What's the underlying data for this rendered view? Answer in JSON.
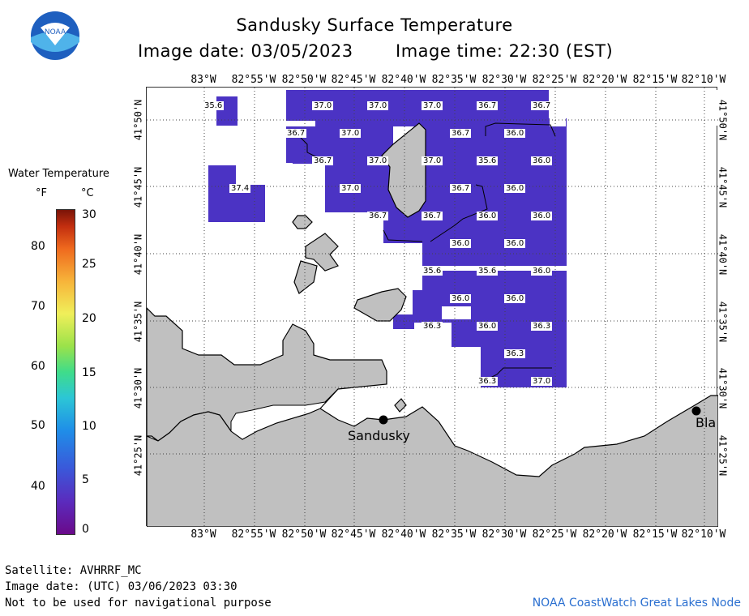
{
  "header": {
    "title": "Sandusky Surface Temperature",
    "image_date": "Image date: 03/05/2023",
    "image_time": "Image time: 22:30 (EST)",
    "logo_text": "NOAA"
  },
  "legend": {
    "title": "Water Temperature",
    "unit_f": "°F",
    "unit_c": "°C",
    "f_ticks": [
      "80",
      "70",
      "60",
      "50",
      "40"
    ],
    "c_ticks": [
      "30",
      "25",
      "20",
      "15",
      "10",
      "5",
      "0"
    ]
  },
  "axes": {
    "lon_labels": [
      "83°W",
      "82°55'W",
      "82°50'W",
      "82°45'W",
      "82°40'W",
      "82°35'W",
      "82°30'W",
      "82°25'W",
      "82°20'W",
      "82°15'W",
      "82°10'W"
    ],
    "lat_labels": [
      "41°50'N",
      "41°45'N",
      "41°40'N",
      "41°35'N",
      "41°30'N",
      "41°25'N"
    ]
  },
  "temperatures": [
    "35.6",
    "37.0",
    "37.0",
    "37.0",
    "36.7",
    "36.7",
    "36.7",
    "37.0",
    "36.7",
    "36.0",
    "36.7",
    "37.0",
    "37.0",
    "35.6",
    "36.0",
    "37.4",
    "37.0",
    "36.7",
    "36.0",
    "36.7",
    "36.7",
    "36.0",
    "36.0",
    "36.0",
    "36.0",
    "35.6",
    "35.6",
    "36.0",
    "36.0",
    "36.0",
    "36.3",
    "36.0",
    "36.3",
    "36.3",
    "36.3",
    "37.0"
  ],
  "cities": {
    "sandusky": "Sandusky",
    "bla": "Bla"
  },
  "footer": {
    "satellite": "Satellite: AVHRRF_MC",
    "utc_date": "Image date: (UTC) 03/06/2023  03:30",
    "disclaimer": "Not to be used for navigational purpose",
    "node": "NOAA CoastWatch Great Lakes Node"
  },
  "colors": {
    "water_purple": "#4b33c4",
    "water_dark": "#5a2cb8",
    "land": "#c0c0c0",
    "link_blue": "#2a6fd0"
  }
}
